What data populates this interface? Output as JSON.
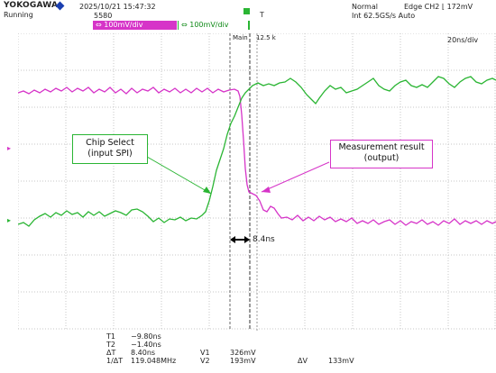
{
  "header": {
    "brand": "YOKOGAWA",
    "state": "Running",
    "datetime": "2025/10/21 15:47:32",
    "acq_count": "5580",
    "ch1_label": "100mV/div",
    "ch2_label": "100mV/div",
    "trigger_mode": "Normal",
    "trigger_info": "Edge CH2 ⌊ 172mV",
    "sample_info": "Int 62.5GS/s  Auto",
    "timebase": "20ns/div",
    "main_label": "Main",
    "main_value": "12.5 k"
  },
  "colors": {
    "ch1": "#d634c8",
    "ch2": "#2ab533",
    "grid": "#c7c7c7",
    "callout_ch2": "#2ab533",
    "callout_ch1": "#d634c8"
  },
  "annotations": {
    "chip_select_line1": "Chip Select",
    "chip_select_line2": "(input SPI)",
    "measure_line1": "Measurement result",
    "measure_line2": "(output)",
    "delta": "8.4ns"
  },
  "measurements": {
    "t1_label": "T1",
    "t1_value": "−9.80ns",
    "t2_label": "T2",
    "t2_value": "−1.40ns",
    "dt_label": "ΔT",
    "dt_value": "8.40ns",
    "inv_label": "1/ΔT",
    "inv_value": "119.048MHz",
    "v1_label": "V1",
    "v1_value": "326mV",
    "v2_label": "V2",
    "v2_value": "193mV",
    "dv_label": "ΔV",
    "dv_value": "133mV"
  }
}
